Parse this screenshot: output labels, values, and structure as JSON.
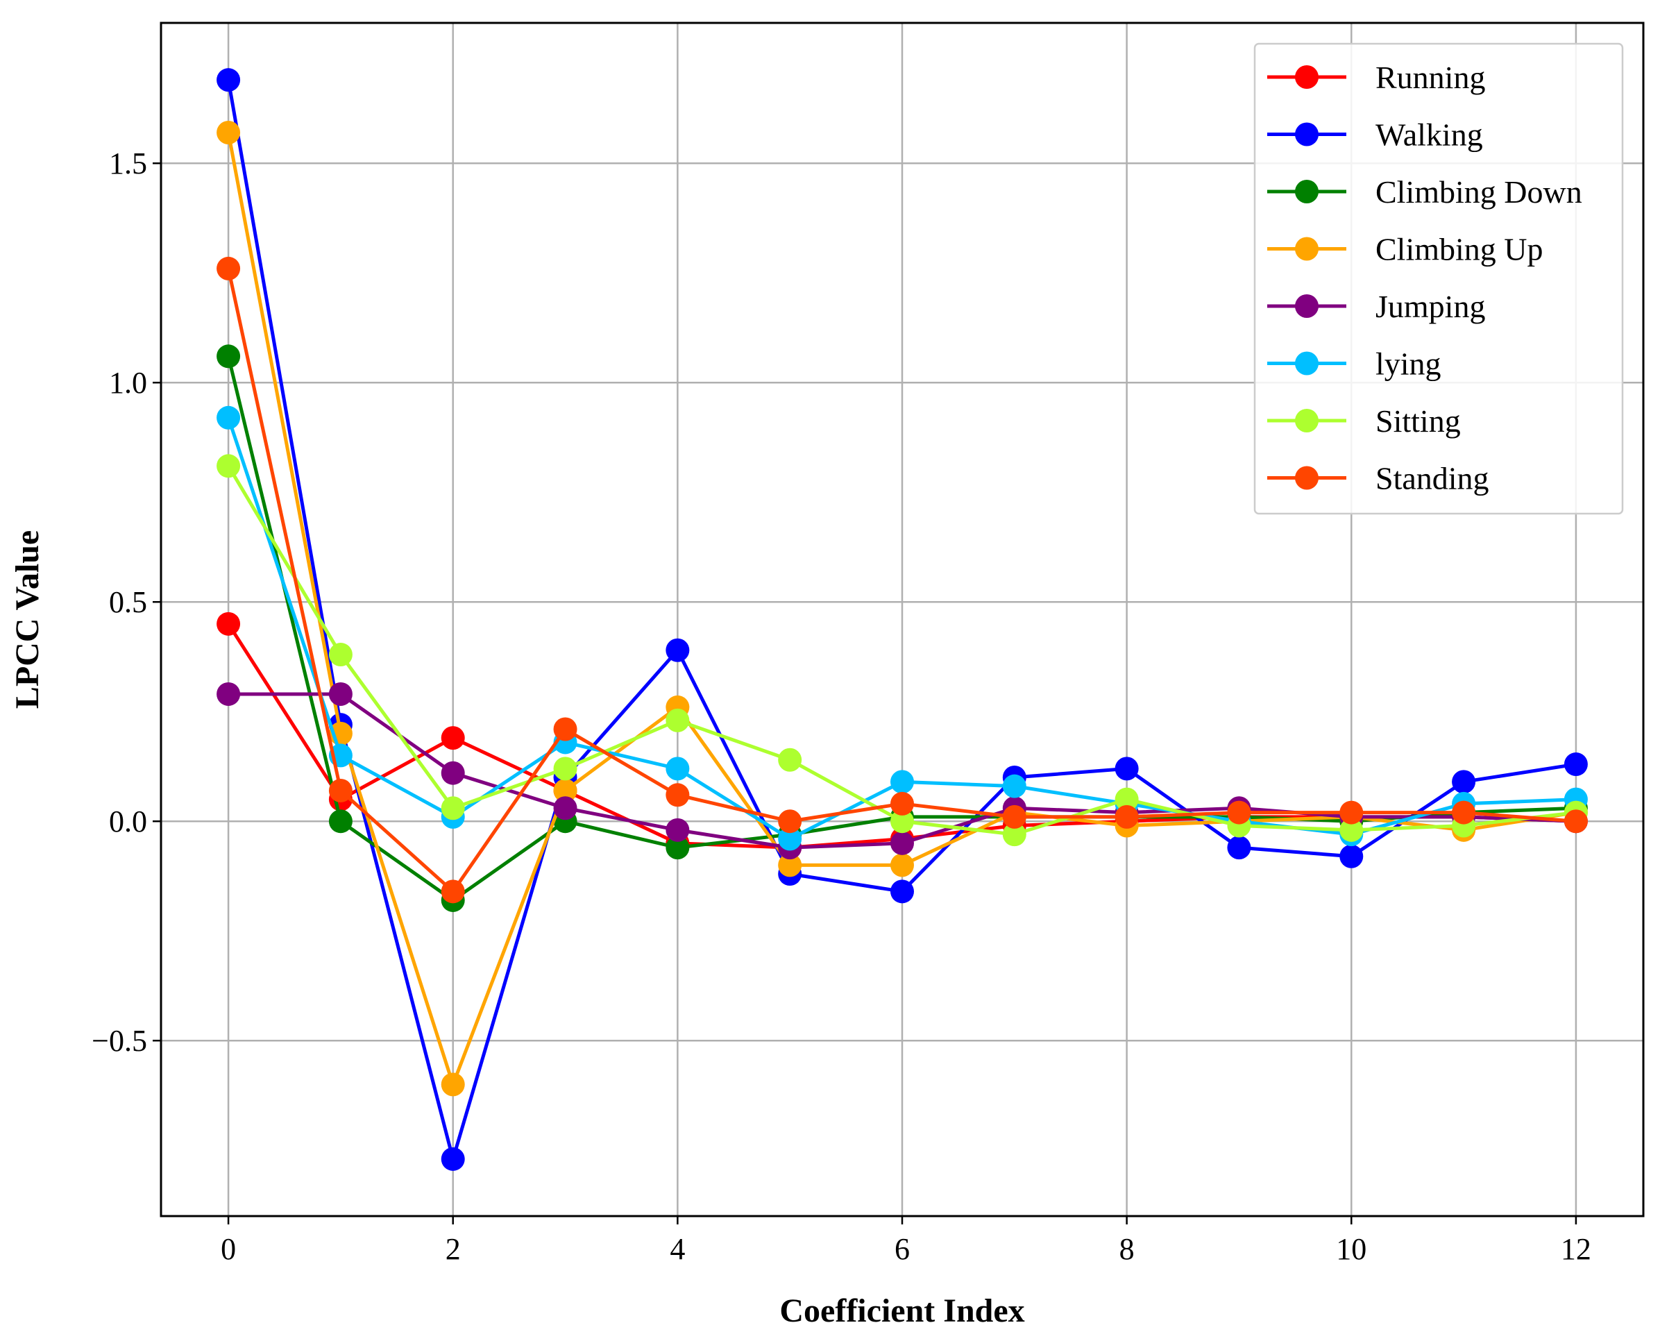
{
  "chart_data": {
    "type": "line",
    "title": "",
    "xlabel": "Coefficient Index",
    "ylabel": "LPCC Value",
    "xlim": [
      -0.6,
      12.6
    ],
    "ylim": [
      -0.9,
      1.82
    ],
    "xticks": [
      0,
      2,
      4,
      6,
      8,
      10,
      12
    ],
    "xtick_labels": [
      "0",
      "2",
      "4",
      "6",
      "8",
      "10",
      "12"
    ],
    "yticks": [
      -0.5,
      0.0,
      0.5,
      1.0,
      1.5
    ],
    "ytick_labels": [
      "−0.5",
      "0.0",
      "0.5",
      "1.0",
      "1.5"
    ],
    "grid": true,
    "legend_position": "top-right",
    "x": [
      0,
      1,
      2,
      3,
      4,
      5,
      6,
      7,
      8,
      9,
      10,
      11,
      12
    ],
    "series": [
      {
        "name": "Running",
        "color": "#ff0000",
        "values": [
          0.45,
          0.05,
          0.19,
          0.07,
          -0.05,
          -0.06,
          -0.04,
          -0.01,
          0.0,
          0.01,
          0.01,
          0.01,
          0.0
        ]
      },
      {
        "name": "Walking",
        "color": "#0000ff",
        "values": [
          1.69,
          0.22,
          -0.77,
          0.1,
          0.39,
          -0.12,
          -0.16,
          0.1,
          0.12,
          -0.06,
          -0.08,
          0.09,
          0.13
        ]
      },
      {
        "name": "Climbing Down",
        "color": "#008000",
        "values": [
          1.06,
          0.0,
          -0.18,
          0.0,
          -0.06,
          -0.03,
          0.01,
          0.01,
          0.01,
          0.01,
          0.0,
          0.02,
          0.03
        ]
      },
      {
        "name": "Climbing Up",
        "color": "#ffa500",
        "values": [
          1.57,
          0.2,
          -0.6,
          0.07,
          0.26,
          -0.1,
          -0.1,
          0.02,
          -0.01,
          0.0,
          0.01,
          -0.02,
          0.02
        ]
      },
      {
        "name": "Jumping",
        "color": "#800080",
        "values": [
          0.29,
          0.29,
          0.11,
          0.03,
          -0.02,
          -0.06,
          -0.05,
          0.03,
          0.02,
          0.03,
          0.01,
          0.01,
          0.0
        ]
      },
      {
        "name": "lying",
        "color": "#00bfff",
        "values": [
          0.92,
          0.15,
          0.01,
          0.18,
          0.12,
          -0.04,
          0.09,
          0.08,
          0.04,
          0.0,
          -0.03,
          0.04,
          0.05
        ]
      },
      {
        "name": "Sitting",
        "color": "#adff2f",
        "values": [
          0.81,
          0.38,
          0.03,
          0.12,
          0.23,
          0.14,
          0.0,
          -0.03,
          0.05,
          -0.01,
          -0.02,
          -0.01,
          0.02
        ]
      },
      {
        "name": "Standing",
        "color": "#ff4500",
        "values": [
          1.26,
          0.07,
          -0.16,
          0.21,
          0.06,
          0.0,
          0.04,
          0.01,
          0.01,
          0.02,
          0.02,
          0.02,
          0.0
        ]
      }
    ]
  }
}
